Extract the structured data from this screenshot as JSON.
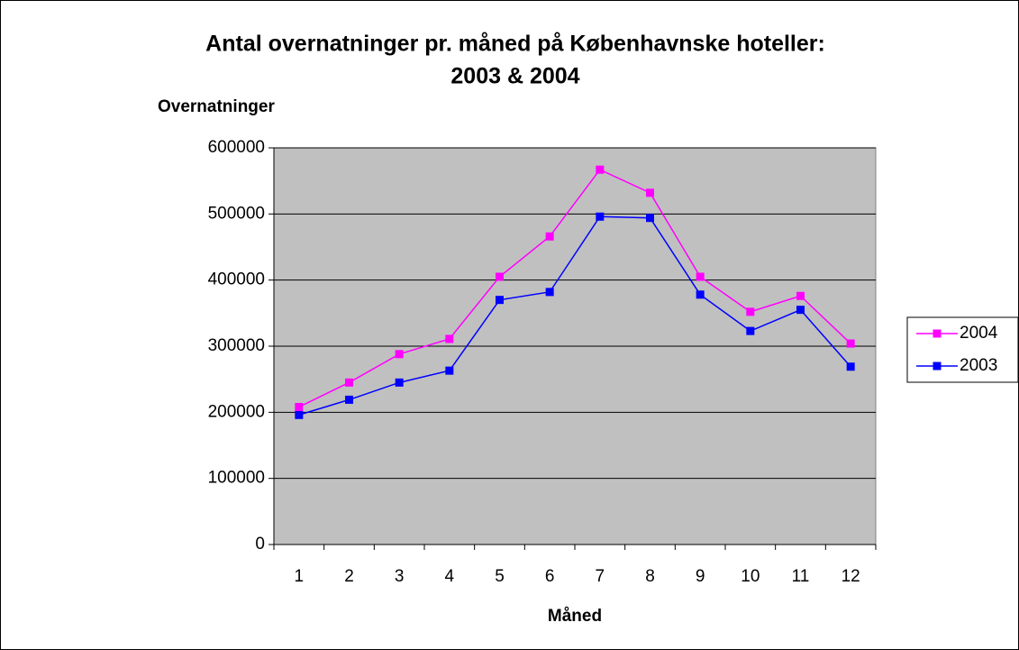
{
  "chart_data": {
    "type": "line",
    "title": [
      "Antal overnatninger pr. måned på Københavnske hoteller:",
      "2003 & 2004"
    ],
    "y_label": "Overnatninger",
    "x_label": "Måned",
    "categories": [
      "1",
      "2",
      "3",
      "4",
      "5",
      "6",
      "7",
      "8",
      "9",
      "10",
      "11",
      "12"
    ],
    "series": [
      {
        "name": "2004",
        "color": "#ff00ff",
        "values": [
          208000,
          245000,
          288000,
          311000,
          405000,
          466000,
          567000,
          532000,
          405000,
          352000,
          376000,
          304000
        ]
      },
      {
        "name": "2003",
        "color": "#0000ff",
        "values": [
          196000,
          219000,
          245000,
          263000,
          370000,
          382000,
          496000,
          494000,
          378000,
          323000,
          355000,
          269000
        ]
      }
    ],
    "ylim": [
      0,
      600000
    ],
    "yticks": [
      0,
      100000,
      200000,
      300000,
      400000,
      500000,
      600000
    ],
    "grid": true,
    "legend": "right",
    "plot_background": "#c0c0c0"
  }
}
